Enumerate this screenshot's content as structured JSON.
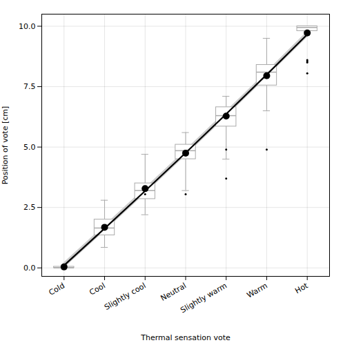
{
  "chart_data": {
    "type": "box",
    "xlabel": "Thermal sensation vote",
    "ylabel": "Position of vote [cm]",
    "categories": [
      "Cold",
      "Cool",
      "Slightly cool",
      "Neutral",
      "Slightly warm",
      "Warm",
      "Hot"
    ],
    "series": [
      {
        "type": "band",
        "color": "#cccccc",
        "low": [
          -0.0155,
          1.51,
          3.0621,
          4.641,
          6.2464,
          7.8786,
          9.5374
        ],
        "high": [
          0.2245,
          1.75,
          3.3021,
          4.881,
          6.4864,
          8.1186,
          9.7774
        ]
      },
      {
        "type": "box",
        "color": "#aaaaaa",
        "values": [
          {
            "q1": 0.0,
            "median": 0.0,
            "q3": 0.05,
            "whisker_low": 0.0,
            "whisker_high": 0.05,
            "outliers": [
              0.07,
              0.08,
              0.09,
              0.1,
              0.11,
              0.12,
              0.13,
              0.14
            ]
          },
          {
            "q1": 1.35,
            "median": 1.65,
            "q3": 2.0,
            "whisker_low": 0.85,
            "whisker_high": 2.8,
            "outliers": []
          },
          {
            "q1": 2.85,
            "median": 3.2,
            "q3": 3.5,
            "whisker_low": 2.2,
            "whisker_high": 4.7,
            "outliers": [
              3.05
            ]
          },
          {
            "q1": 4.5,
            "median": 4.85,
            "q3": 5.1,
            "whisker_low": 3.2,
            "whisker_high": 5.6,
            "outliers": [
              3.05
            ]
          },
          {
            "q1": 5.85,
            "median": 6.3,
            "q3": 6.65,
            "whisker_low": 4.5,
            "whisker_high": 7.1,
            "outliers": [
              3.7,
              4.9
            ]
          },
          {
            "q1": 7.55,
            "median": 8.1,
            "q3": 8.4,
            "whisker_low": 6.5,
            "whisker_high": 9.5,
            "outliers": [
              4.9
            ]
          },
          {
            "q1": 9.8,
            "median": 9.95,
            "q3": 10.0,
            "whisker_low": 9.8,
            "whisker_high": 10.0,
            "outliers": [
              8.5,
              8.6,
              8.05,
              8.55
            ]
          }
        ]
      },
      {
        "type": "line",
        "color": "#000000",
        "values": [
          0.1045,
          1.63,
          3.1821,
          4.761,
          6.3664,
          7.9986,
          9.6574
        ]
      },
      {
        "type": "scatter",
        "color": "#000000",
        "marker": "circle",
        "values": [
          0.04,
          1.68,
          3.28,
          4.75,
          6.28,
          7.95,
          9.72
        ]
      }
    ],
    "ylim": [
      -0.35,
      10.5
    ],
    "yticks": [
      {
        "value": 0,
        "label": "0.0"
      },
      2.5,
      {
        "value": 5,
        "label": "5.0"
      },
      7.5,
      {
        "value": 10,
        "label": "10.0"
      }
    ],
    "grid": true
  }
}
